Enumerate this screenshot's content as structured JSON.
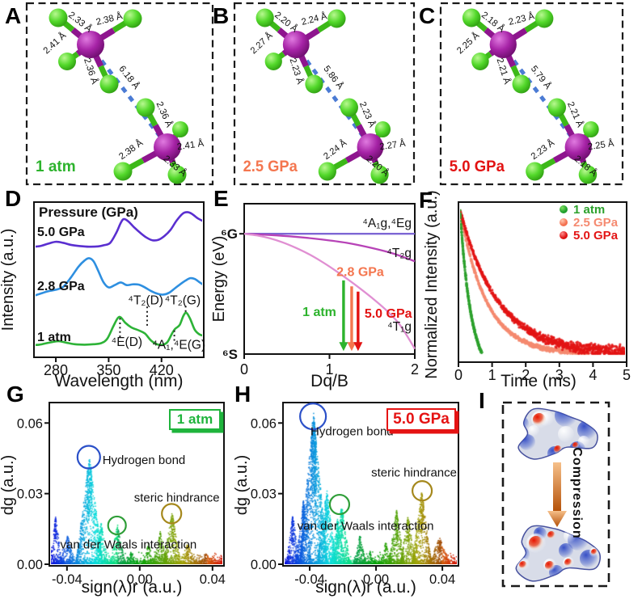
{
  "molecule_panels": [
    {
      "letter": "A",
      "condition": "1 atm",
      "condition_color": "#2db32d",
      "inter_distance": "6.18 Å",
      "upper_bonds": [
        "2.33 Å",
        "2.38 Å",
        "2.41 Å",
        "2.36 Å"
      ],
      "lower_bonds": [
        "2.36 Å",
        "2.41 Å",
        "2.38 Å",
        "2.33 Å"
      ]
    },
    {
      "letter": "B",
      "condition": "2.5 GPa",
      "condition_color": "#f4764f",
      "inter_distance": "5.86 Å",
      "upper_bonds": [
        "2.20 Å",
        "2.24 Å",
        "2.27 Å",
        "2.23 Å"
      ],
      "lower_bonds": [
        "2.23 Å",
        "2.27 Å",
        "2.24 Å",
        "2.20 Å"
      ]
    },
    {
      "letter": "C",
      "condition": "5.0 GPa",
      "condition_color": "#e21212",
      "inter_distance": "5.79 Å",
      "upper_bonds": [
        "2.18 Å",
        "2.23 Å",
        "2.25 Å",
        "2.21 Å"
      ],
      "lower_bonds": [
        "2.21 Å",
        "2.25 Å",
        "2.23 Å",
        "2.18 Å"
      ]
    }
  ],
  "molecule_style": {
    "center_color": "#9a1b9a",
    "ligand_color": "#3fc01c",
    "bond_center_color": "#8e158e",
    "bond_ligand_color": "#3cb818",
    "dash_color": "#4b7bd4"
  },
  "chart_data": [
    {
      "id": "D",
      "letter": "D",
      "type": "line",
      "legend_title": "Pressure (GPa)",
      "xlabel": "Wavelength (nm)",
      "ylabel": "Intensity (a.u.)",
      "xticks": [
        "280",
        "350",
        "420"
      ],
      "xlim": [
        251,
        476
      ],
      "ylim": [
        0,
        1
      ],
      "series": [
        {
          "name": "5.0 GPa",
          "color": "#5a2fd0",
          "points": [
            [
              251,
              0.72
            ],
            [
              260,
              0.725
            ],
            [
              270,
              0.74
            ],
            [
              280,
              0.752
            ],
            [
              290,
              0.745
            ],
            [
              300,
              0.732
            ],
            [
              312,
              0.724
            ],
            [
              324,
              0.72
            ],
            [
              336,
              0.722
            ],
            [
              344,
              0.73
            ],
            [
              352,
              0.745
            ],
            [
              360,
              0.81
            ],
            [
              366,
              0.875
            ],
            [
              370,
              0.9
            ],
            [
              376,
              0.885
            ],
            [
              384,
              0.845
            ],
            [
              392,
              0.81
            ],
            [
              400,
              0.78
            ],
            [
              408,
              0.762
            ],
            [
              416,
              0.765
            ],
            [
              424,
              0.79
            ],
            [
              432,
              0.83
            ],
            [
              440,
              0.89
            ],
            [
              448,
              0.935
            ],
            [
              454,
              0.945
            ],
            [
              460,
              0.935
            ],
            [
              468,
              0.905
            ],
            [
              476,
              0.885
            ]
          ]
        },
        {
          "name": "2.8 GPa",
          "color": "#2e8fe0",
          "points": [
            [
              251,
              0.4
            ],
            [
              260,
              0.415
            ],
            [
              270,
              0.43
            ],
            [
              280,
              0.44
            ],
            [
              290,
              0.46
            ],
            [
              300,
              0.52
            ],
            [
              310,
              0.59
            ],
            [
              318,
              0.63
            ],
            [
              324,
              0.645
            ],
            [
              330,
              0.625
            ],
            [
              336,
              0.565
            ],
            [
              343,
              0.49
            ],
            [
              350,
              0.455
            ],
            [
              358,
              0.47
            ],
            [
              366,
              0.487
            ],
            [
              374,
              0.47
            ],
            [
              382,
              0.475
            ],
            [
              390,
              0.473
            ],
            [
              398,
              0.455
            ],
            [
              406,
              0.432
            ],
            [
              414,
              0.415
            ],
            [
              422,
              0.408
            ],
            [
              430,
              0.42
            ],
            [
              438,
              0.45
            ],
            [
              446,
              0.48
            ],
            [
              452,
              0.5
            ],
            [
              458,
              0.515
            ],
            [
              464,
              0.51
            ],
            [
              470,
              0.49
            ],
            [
              476,
              0.47
            ]
          ]
        },
        {
          "name": "1 atm",
          "color": "#2db337",
          "points": [
            [
              251,
              0.08
            ],
            [
              258,
              0.082
            ],
            [
              266,
              0.09
            ],
            [
              276,
              0.1
            ],
            [
              284,
              0.105
            ],
            [
              294,
              0.095
            ],
            [
              305,
              0.085
            ],
            [
              318,
              0.082
            ],
            [
              330,
              0.085
            ],
            [
              340,
              0.092
            ],
            [
              348,
              0.12
            ],
            [
              356,
              0.2
            ],
            [
              362,
              0.255
            ],
            [
              366,
              0.26
            ],
            [
              372,
              0.225
            ],
            [
              380,
              0.195
            ],
            [
              390,
              0.175
            ],
            [
              398,
              0.155
            ],
            [
              406,
              0.11
            ],
            [
              414,
              0.085
            ],
            [
              422,
              0.082
            ],
            [
              428,
              0.1
            ],
            [
              434,
              0.155
            ],
            [
              438,
              0.185
            ],
            [
              444,
              0.21
            ],
            [
              449,
              0.27
            ],
            [
              453,
              0.29
            ],
            [
              458,
              0.25
            ],
            [
              464,
              0.18
            ],
            [
              470,
              0.15
            ],
            [
              476,
              0.14
            ]
          ]
        }
      ],
      "peak_annotations": [
        {
          "text": "⁴E(D)",
          "label_x": 374,
          "label_y": 0.075,
          "line_x": 365,
          "line_y1": 0.255,
          "line_y2": 0.12
        },
        {
          "text": "⁴T₂(D)",
          "label_x": 399,
          "label_y": 0.345,
          "line_x": 401,
          "line_y1": 0.33,
          "line_y2": 0.19
        },
        {
          "text": "⁴T₂(G)",
          "label_x": 448,
          "label_y": 0.345,
          "line_x": 452,
          "line_y1": 0.335,
          "line_y2": 0.295
        },
        {
          "text": "⁴A₁,⁴E(G)",
          "label_x": 443,
          "label_y": 0.055,
          "line_x": 437,
          "line_y1": 0.175,
          "line_y2": 0.1
        }
      ]
    },
    {
      "id": "E",
      "letter": "E",
      "type": "line",
      "xlabel": "Dq/B",
      "ylabel": "Energy (eV)",
      "xticks": [
        "0",
        "1",
        "2"
      ],
      "ytop": "⁶G",
      "ybottom": "⁶S",
      "xlim": [
        0,
        2
      ],
      "levels": [
        {
          "name": "⁴A₁g,⁴Eg",
          "color": "#7d66d4",
          "label_y": 0.845,
          "points": [
            [
              0,
              0.8
            ],
            [
              2,
              0.8
            ]
          ]
        },
        {
          "name": "⁴T₂g",
          "color": "#b743b7",
          "label_y": 0.645,
          "points": [
            [
              0,
              0.8
            ],
            [
              0.3,
              0.792
            ],
            [
              0.6,
              0.78
            ],
            [
              0.9,
              0.763
            ],
            [
              1.2,
              0.74
            ],
            [
              1.5,
              0.705
            ],
            [
              1.75,
              0.668
            ],
            [
              2,
              0.617
            ]
          ]
        },
        {
          "name": "⁴T₁g",
          "color": "#e08fd2",
          "label_y": 0.155,
          "points": [
            [
              0,
              0.8
            ],
            [
              0.15,
              0.789
            ],
            [
              0.3,
              0.77
            ],
            [
              0.45,
              0.743
            ],
            [
              0.6,
              0.708
            ],
            [
              0.75,
              0.667
            ],
            [
              0.9,
              0.618
            ],
            [
              1.05,
              0.563
            ],
            [
              1.2,
              0.503
            ],
            [
              1.35,
              0.44
            ],
            [
              1.5,
              0.373
            ],
            [
              1.65,
              0.3
            ],
            [
              1.8,
              0.213
            ],
            [
              1.9,
              0.13
            ],
            [
              2,
              0.035
            ]
          ]
        }
      ],
      "arrows": [
        {
          "name": "1 atm",
          "color": "#2db32d",
          "x": 1.165,
          "y_start": 0.49
        },
        {
          "name": "2.8 GPa",
          "color": "#f4764f",
          "x": 1.26,
          "y_start": 0.45
        },
        {
          "name": "5.0 GPa",
          "color": "#e21212",
          "x": 1.335,
          "y_start": 0.415
        }
      ]
    },
    {
      "id": "F",
      "letter": "F",
      "type": "scatter",
      "xlabel": "Time (ms)",
      "ylabel": "Normalized Intensity (a.u.)",
      "xticks": [
        "0",
        "1",
        "2",
        "3",
        "4",
        "5"
      ],
      "xlim": [
        0,
        5
      ],
      "series": [
        {
          "name": "1 atm",
          "color": "#2ca12c",
          "decay": "linear",
          "tau": 0.3,
          "t_end": 0.66,
          "n": 380
        },
        {
          "name": "2.5 GPa",
          "color": "#f58a70",
          "decay": "exp",
          "tau": 0.8,
          "t_end": 3.9,
          "n": 850
        },
        {
          "name": "5.0 GPa",
          "color": "#e31515",
          "decay": "exp",
          "tau": 1.15,
          "t_end": 5.0,
          "n": 1050
        }
      ]
    },
    {
      "id": "G",
      "letter": "G",
      "type": "nci_scatter",
      "badge": {
        "text": "1 atm",
        "color": "#1fb43c"
      },
      "xlabel": "sign(λ)r (a.u.)",
      "ylabel": "dg (a.u.)",
      "xticks": [
        {
          "v": -0.04,
          "label": "-0.04"
        },
        {
          "v": 0,
          "label": "0.00"
        },
        {
          "v": 0.04,
          "label": "0.04"
        }
      ],
      "yticks": [
        {
          "v": 0,
          "label": "0.00"
        },
        {
          "v": 0.03,
          "label": "0.03"
        },
        {
          "v": 0.06,
          "label": "0.06"
        }
      ],
      "xlim": [
        -0.0497,
        0.0463
      ],
      "ylim": [
        0,
        0.068
      ],
      "peaks": [
        [
          -0.0465,
          0.021,
          0.0035
        ],
        [
          -0.04,
          0.013,
          0.004
        ],
        [
          -0.028,
          0.0465,
          0.0075
        ],
        [
          -0.0215,
          0.018,
          0.004
        ],
        [
          -0.0125,
          0.017,
          0.0045
        ],
        [
          -0.005,
          0.006,
          0.0025
        ],
        [
          0.0045,
          0.009,
          0.0035
        ],
        [
          0.011,
          0.0145,
          0.004
        ],
        [
          0.0175,
          0.0225,
          0.005
        ],
        [
          0.026,
          0.009,
          0.005
        ],
        [
          0.036,
          0.005,
          0.006
        ]
      ],
      "annotations": [
        {
          "text": "Hydrogen bond",
          "cx": -0.028,
          "cy": 0.0455,
          "r": 14,
          "color": "#2b50c8",
          "lx": -0.0205,
          "ly": 0.0443,
          "anchor": "start"
        },
        {
          "text": "steric hindrance",
          "cx": 0.0175,
          "cy": 0.0215,
          "r": 12,
          "color": "#a5881c",
          "lx": 0.0204,
          "ly": 0.0283,
          "anchor": "middle"
        },
        {
          "text": "van der Waals interaction",
          "cx": -0.0125,
          "cy": 0.0165,
          "r": 11,
          "color": "#2f9e38",
          "lx": -0.0062,
          "ly": 0.0085,
          "anchor": "middle"
        }
      ]
    },
    {
      "id": "H",
      "letter": "H",
      "type": "nci_scatter",
      "badge": {
        "text": "5.0 GPa",
        "color": "#e51313"
      },
      "xlabel": "sign(λ)r (a.u.)",
      "ylabel": "dg (a.u.)",
      "xticks": [
        {
          "v": -0.04,
          "label": "-0.04"
        },
        {
          "v": 0,
          "label": "0.00"
        },
        {
          "v": 0.04,
          "label": "0.04"
        }
      ],
      "yticks": [
        {
          "v": 0,
          "label": "0.00"
        },
        {
          "v": 0.03,
          "label": "0.03"
        },
        {
          "v": 0.06,
          "label": "0.06"
        }
      ],
      "xlim": [
        -0.0561,
        0.0497
      ],
      "ylim": [
        0,
        0.068
      ],
      "peaks": [
        [
          -0.0505,
          0.022,
          0.004
        ],
        [
          -0.044,
          0.028,
          0.005
        ],
        [
          -0.038,
          0.0655,
          0.0085
        ],
        [
          -0.03,
          0.032,
          0.006
        ],
        [
          -0.0235,
          0.02,
          0.0045
        ],
        [
          -0.021,
          0.026,
          0.005
        ],
        [
          -0.01,
          0.013,
          0.004
        ],
        [
          -0.004,
          0.006,
          0.0025
        ],
        [
          0.0055,
          0.01,
          0.0035
        ],
        [
          0.012,
          0.0235,
          0.005
        ],
        [
          0.019,
          0.021,
          0.005
        ],
        [
          0.0272,
          0.0315,
          0.006
        ],
        [
          0.038,
          0.012,
          0.0065
        ]
      ],
      "annotations": [
        {
          "text": "Hydrogen bond",
          "cx": -0.038,
          "cy": 0.0628,
          "r": 16,
          "color": "#2b50c8",
          "lx": -0.0395,
          "ly": 0.0565,
          "anchor": "start"
        },
        {
          "text": "steric hindrance",
          "cx": 0.0278,
          "cy": 0.0312,
          "r": 12,
          "color": "#a5881c",
          "lx": 0.0229,
          "ly": 0.039,
          "anchor": "middle"
        },
        {
          "text": "van der Waals interaction",
          "cx": -0.022,
          "cy": 0.0254,
          "r": 12,
          "color": "#2f9e38",
          "lx": -0.0063,
          "ly": 0.0163,
          "anchor": "middle"
        }
      ]
    }
  ],
  "panel_I": {
    "letter": "I",
    "arrow_label": "Compression",
    "arrow_color_top": "#f6c08a",
    "arrow_color_bottom": "#b34f06"
  }
}
